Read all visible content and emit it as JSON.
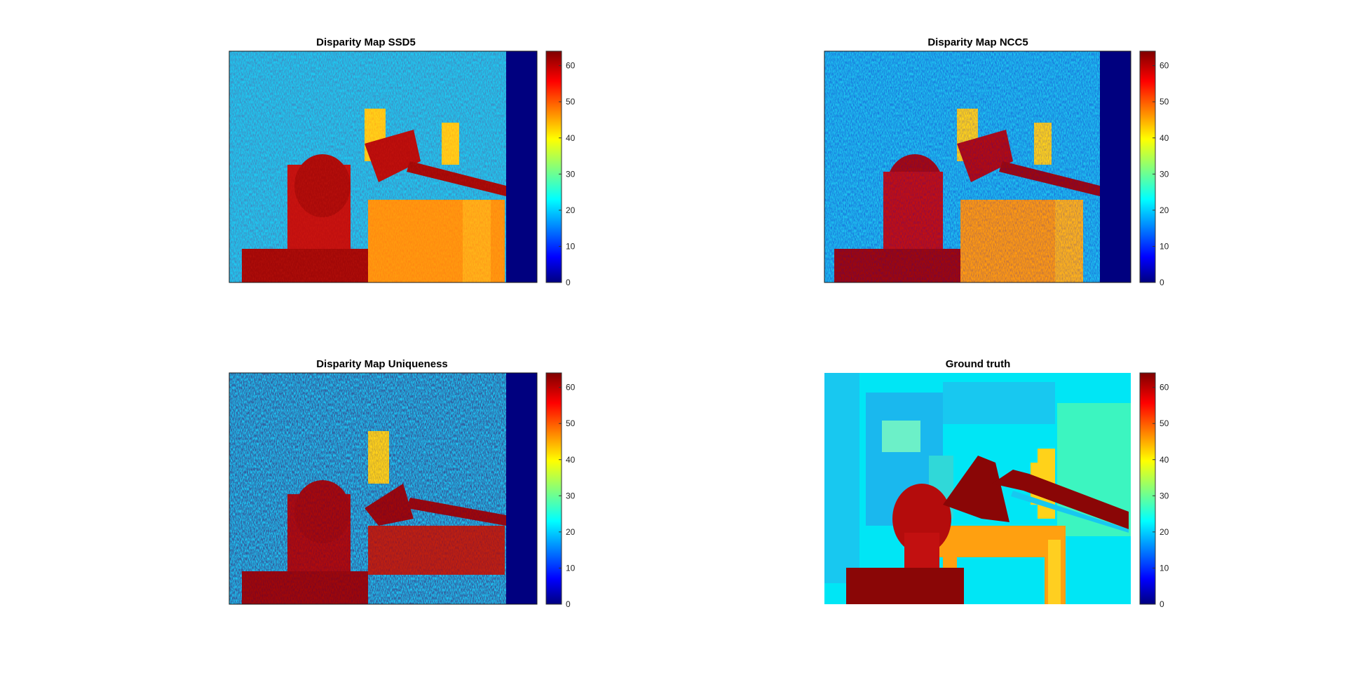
{
  "figure": {
    "background": "#ffffff"
  },
  "colormap": {
    "name": "jet",
    "min": 0,
    "max": 64,
    "ticks": [
      0,
      10,
      20,
      30,
      40,
      50,
      60
    ],
    "stops": [
      "#00007f",
      "#0000ff",
      "#00ffff",
      "#ffff00",
      "#ff0000",
      "#7f0000"
    ]
  },
  "chart_data": [
    {
      "type": "heatmap",
      "title": "Disparity Map SSD5",
      "colorbar": {
        "min": 0,
        "max": 64,
        "ticks": [
          0,
          10,
          20,
          30,
          40,
          50,
          60
        ]
      },
      "axes_visible": false,
      "description_value_range": [
        0,
        64
      ]
    },
    {
      "type": "heatmap",
      "title": "Disparity Map NCC5",
      "colorbar": {
        "min": 0,
        "max": 64,
        "ticks": [
          0,
          10,
          20,
          30,
          40,
          50,
          60
        ]
      },
      "axes_visible": false
    },
    {
      "type": "heatmap",
      "title": "Disparity Map Uniqueness",
      "colorbar": {
        "min": 0,
        "max": 64,
        "ticks": [
          0,
          10,
          20,
          30,
          40,
          50,
          60
        ]
      },
      "axes_visible": false
    },
    {
      "type": "heatmap",
      "title": "Ground truth",
      "colorbar": {
        "min": 0,
        "max": 64,
        "ticks": [
          0,
          10,
          20,
          30,
          40,
          50,
          60
        ]
      },
      "axes_visible": false
    }
  ]
}
